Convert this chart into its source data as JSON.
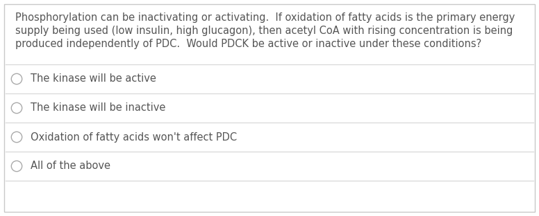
{
  "background_color": "#ffffff",
  "border_color": "#c8c8c8",
  "question_lines": [
    "Phosphorylation can be inactivating or activating.  If oxidation of fatty acids is the primary energy",
    "supply being used (low insulin, high glucagon), then acetyl CoA with rising concentration is being",
    "produced independently of PDC.  Would PDCK be active or inactive under these conditions?"
  ],
  "options": [
    "The kinase will be active",
    "The kinase will be inactive",
    "Oxidation of fatty acids won't affect PDC",
    "All of the above"
  ],
  "text_color": "#555555",
  "separator_color": "#d8d8d8",
  "circle_edge_color": "#aaaaaa",
  "question_fontsize": 10.5,
  "option_fontsize": 10.5,
  "fig_width": 7.76,
  "fig_height": 3.12,
  "dpi": 100
}
